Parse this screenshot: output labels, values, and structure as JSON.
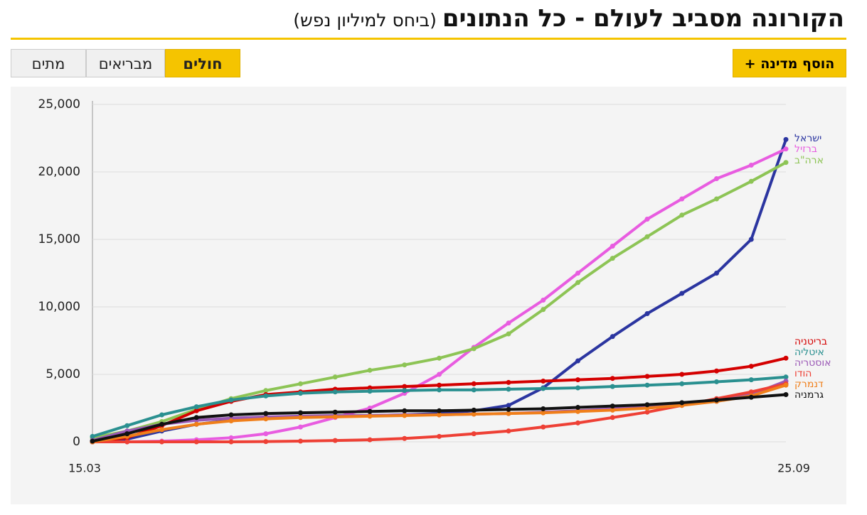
{
  "header": {
    "title": "הקורונה מסביב לעולם - כל הנתונים",
    "subtitle": "(ביחס למיליון נפש)"
  },
  "tabs": [
    "מתים",
    "מבריאים",
    "חולים"
  ],
  "active_tab": 2,
  "add_button": "הוסף מדינה +",
  "chart_data": {
    "type": "line",
    "x": [
      "15.03",
      null,
      null,
      null,
      null,
      null,
      null,
      null,
      null,
      null,
      null,
      null,
      null,
      null,
      null,
      null,
      null,
      null,
      null,
      null,
      "25.09"
    ],
    "ylim": [
      0,
      25000
    ],
    "yticks": [
      0,
      {
        "value": 5000,
        "label": "5,000"
      },
      {
        "value": 10000,
        "label": "10,000"
      },
      {
        "value": 15000,
        "label": "15,000"
      },
      {
        "value": 20000,
        "label": "20,000"
      },
      {
        "value": 25000,
        "label": "25,000"
      }
    ],
    "grid": true,
    "series": [
      {
        "name": "ישראל",
        "color": "#2b35a0",
        "values": [
          0,
          200,
          800,
          1300,
          1600,
          1750,
          1850,
          1900,
          1950,
          2000,
          2100,
          2300,
          2700,
          4000,
          6000,
          7800,
          9500,
          11000,
          12500,
          15000,
          22400
        ]
      },
      {
        "name": "ברזיל",
        "color": "#e85ce0",
        "values": [
          0,
          0,
          50,
          150,
          300,
          600,
          1100,
          1800,
          2500,
          3600,
          5000,
          7000,
          8800,
          10500,
          12500,
          14500,
          16500,
          18000,
          19500,
          20500,
          21700
        ]
      },
      {
        "name": "ארה\"ב",
        "color": "#8dc455",
        "values": [
          300,
          800,
          1500,
          2400,
          3200,
          3800,
          4300,
          4800,
          5300,
          5700,
          6200,
          6900,
          8000,
          9800,
          11800,
          13600,
          15200,
          16800,
          18000,
          19300,
          20700
        ]
      },
      {
        "name": "בריטניה",
        "color": "#d40000",
        "values": [
          0,
          300,
          1200,
          2300,
          3000,
          3500,
          3700,
          3900,
          4000,
          4100,
          4200,
          4300,
          4400,
          4500,
          4600,
          4700,
          4850,
          5000,
          5250,
          5600,
          6200
        ]
      },
      {
        "name": "איטליה",
        "color": "#2a9090",
        "values": [
          400,
          1200,
          2000,
          2600,
          3100,
          3400,
          3600,
          3700,
          3750,
          3800,
          3850,
          3850,
          3900,
          3950,
          4000,
          4100,
          4200,
          4300,
          4450,
          4600,
          4800
        ]
      },
      {
        "name": "אוסטריה",
        "color": "#9b59b6",
        "values": [
          100,
          800,
          1300,
          1600,
          1750,
          1850,
          1900,
          1950,
          1950,
          2000,
          2000,
          2050,
          2100,
          2200,
          2300,
          2450,
          2600,
          2800,
          3000,
          3500,
          4500
        ]
      },
      {
        "name": "הודו",
        "color": "#ee4035",
        "values": [
          0,
          0,
          0,
          0,
          0,
          20,
          50,
          100,
          150,
          250,
          400,
          600,
          800,
          1100,
          1400,
          1800,
          2200,
          2700,
          3200,
          3700,
          4300
        ]
      },
      {
        "name": "דנמרק",
        "color": "#f07f1a",
        "values": [
          0,
          400,
          900,
          1300,
          1550,
          1700,
          1800,
          1850,
          1900,
          1950,
          2000,
          2050,
          2100,
          2150,
          2250,
          2350,
          2500,
          2700,
          3000,
          3400,
          4200
        ]
      },
      {
        "name": "גרמניה",
        "color": "#111111",
        "values": [
          50,
          600,
          1300,
          1800,
          2000,
          2100,
          2150,
          2200,
          2250,
          2300,
          2300,
          2350,
          2400,
          2450,
          2550,
          2650,
          2750,
          2900,
          3100,
          3300,
          3500
        ]
      }
    ]
  }
}
